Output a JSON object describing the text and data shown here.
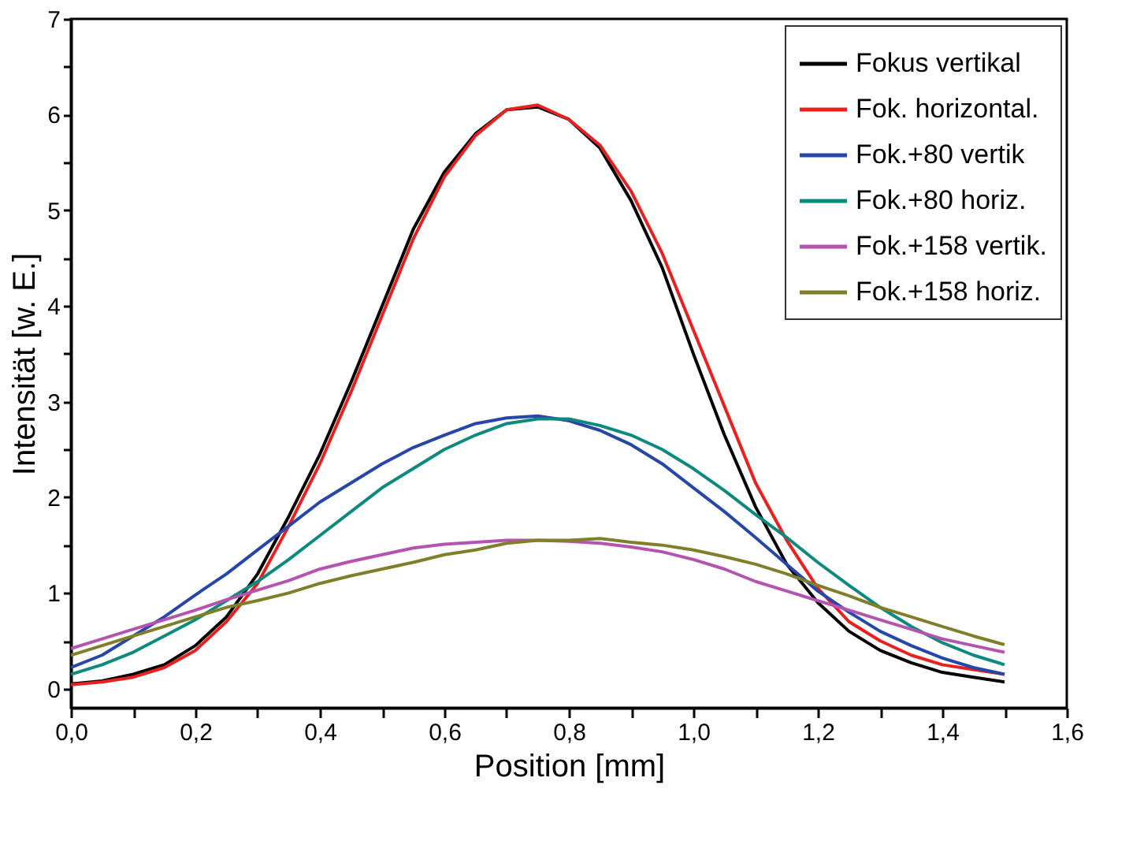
{
  "chart_data": {
    "type": "line",
    "xlabel": "Position [mm]",
    "ylabel": "Intensität [w. E.]",
    "x": [
      0,
      0.05,
      0.1,
      0.15,
      0.2,
      0.25,
      0.3,
      0.35,
      0.4,
      0.45,
      0.5,
      0.55,
      0.6,
      0.65,
      0.7,
      0.75,
      0.8,
      0.85,
      0.9,
      0.95,
      1.0,
      1.05,
      1.1,
      1.15,
      1.2,
      1.25,
      1.3,
      1.35,
      1.4,
      1.45,
      1.5
    ],
    "series": [
      {
        "name": "Fokus vertikal",
        "color": "#000000",
        "values": [
          0.05,
          0.08,
          0.15,
          0.25,
          0.45,
          0.75,
          1.2,
          1.8,
          2.45,
          3.2,
          4.0,
          4.8,
          5.4,
          5.8,
          6.05,
          6.08,
          5.95,
          5.65,
          5.1,
          4.4,
          3.5,
          2.65,
          1.9,
          1.3,
          0.9,
          0.6,
          0.4,
          0.27,
          0.17,
          0.12,
          0.07
        ]
      },
      {
        "name": "Fok. horizontal.",
        "color": "#e8201f",
        "values": [
          0.04,
          0.07,
          0.12,
          0.22,
          0.4,
          0.7,
          1.1,
          1.7,
          2.35,
          3.1,
          3.9,
          4.7,
          5.35,
          5.78,
          6.05,
          6.1,
          5.95,
          5.68,
          5.2,
          4.55,
          3.75,
          2.95,
          2.15,
          1.55,
          1.05,
          0.7,
          0.5,
          0.35,
          0.25,
          0.2,
          0.15
        ]
      },
      {
        "name": "Fok.+80 vertik",
        "color": "#2646a8",
        "values": [
          0.22,
          0.35,
          0.55,
          0.75,
          0.98,
          1.2,
          1.45,
          1.7,
          1.95,
          2.15,
          2.35,
          2.52,
          2.65,
          2.77,
          2.83,
          2.85,
          2.8,
          2.7,
          2.55,
          2.35,
          2.1,
          1.85,
          1.58,
          1.3,
          1.02,
          0.8,
          0.6,
          0.45,
          0.32,
          0.22,
          0.15
        ]
      },
      {
        "name": "Fok.+80 horiz.",
        "color": "#0d8a80",
        "values": [
          0.15,
          0.25,
          0.38,
          0.55,
          0.72,
          0.92,
          1.12,
          1.35,
          1.6,
          1.85,
          2.1,
          2.3,
          2.5,
          2.65,
          2.77,
          2.82,
          2.82,
          2.75,
          2.65,
          2.5,
          2.3,
          2.07,
          1.82,
          1.58,
          1.32,
          1.08,
          0.85,
          0.65,
          0.48,
          0.35,
          0.25
        ]
      },
      {
        "name": "Fok.+158 vertik.",
        "color": "#b553b0",
        "values": [
          0.42,
          0.52,
          0.62,
          0.72,
          0.82,
          0.93,
          1.03,
          1.13,
          1.25,
          1.33,
          1.4,
          1.47,
          1.51,
          1.53,
          1.55,
          1.55,
          1.54,
          1.52,
          1.48,
          1.43,
          1.35,
          1.25,
          1.12,
          1.02,
          0.92,
          0.82,
          0.72,
          0.62,
          0.52,
          0.45,
          0.38
        ]
      },
      {
        "name": "Fok.+158 horiz.",
        "color": "#7f7f2a",
        "values": [
          0.35,
          0.45,
          0.55,
          0.65,
          0.75,
          0.85,
          0.92,
          1.0,
          1.1,
          1.18,
          1.25,
          1.32,
          1.4,
          1.45,
          1.52,
          1.55,
          1.55,
          1.57,
          1.53,
          1.5,
          1.45,
          1.38,
          1.3,
          1.2,
          1.08,
          0.97,
          0.85,
          0.75,
          0.65,
          0.55,
          0.46
        ]
      }
    ],
    "xlim": [
      0,
      1.6
    ],
    "xticks": [
      {
        "value": 0,
        "label": "0,0"
      },
      {
        "value": 0.1,
        "label": null
      },
      {
        "value": 0.2,
        "label": "0,2"
      },
      {
        "value": 0.3,
        "label": null
      },
      {
        "value": 0.4,
        "label": "0,4"
      },
      {
        "value": 0.5,
        "label": null
      },
      {
        "value": 0.6,
        "label": "0,6"
      },
      {
        "value": 0.7,
        "label": null
      },
      {
        "value": 0.8,
        "label": "0,8"
      },
      {
        "value": 0.9,
        "label": null
      },
      {
        "value": 1.0,
        "label": "1,0"
      },
      {
        "value": 1.1,
        "label": null
      },
      {
        "value": 1.2,
        "label": "1,2"
      },
      {
        "value": 1.3,
        "label": null
      },
      {
        "value": 1.4,
        "label": "1,4"
      },
      {
        "value": 1.5,
        "label": null
      },
      {
        "value": 1.6,
        "label": "1,6"
      }
    ],
    "ylim": [
      -0.2,
      7
    ],
    "yticks": [
      0,
      {
        "value": 0.5,
        "label": null
      },
      1,
      {
        "value": 1.5,
        "label": null
      },
      2,
      {
        "value": 2.5,
        "label": null
      },
      3,
      {
        "value": 3.5,
        "label": null
      },
      4,
      {
        "value": 4.5,
        "label": null
      },
      5,
      {
        "value": 5.5,
        "label": null
      },
      6,
      {
        "value": 6.5,
        "label": null
      },
      7
    ],
    "grid": false,
    "legend": "top right",
    "marker": "none",
    "line_style": "solid"
  }
}
